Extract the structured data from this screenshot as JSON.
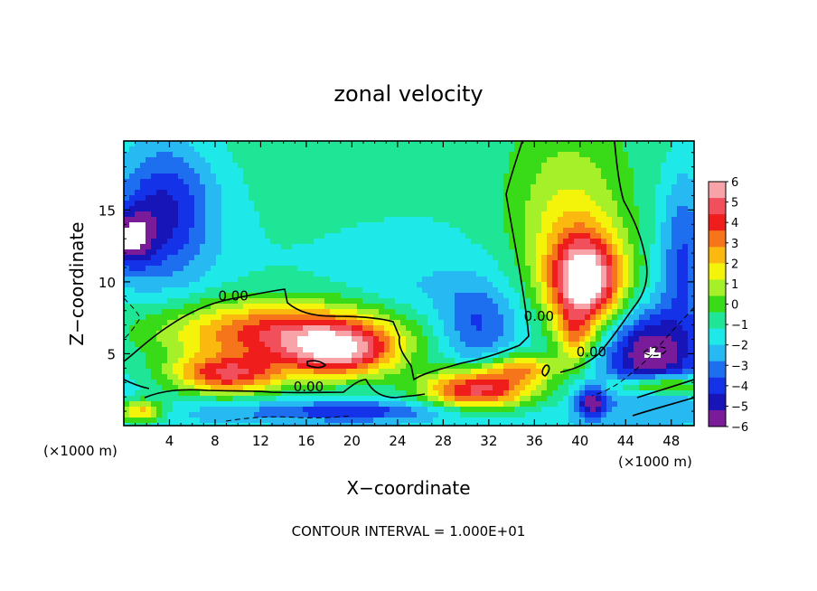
{
  "chart_data": {
    "type": "heatmap",
    "title": "zonal velocity",
    "xlabel": "X−coordinate",
    "ylabel": "Z−coordinate",
    "x_unit_note_left": "(×1000 m)",
    "x_unit_note_right": "(×1000 m)",
    "footer": "CONTOUR INTERVAL = 1.000E+01",
    "xlim": [
      0,
      50
    ],
    "ylim": [
      0,
      19.8
    ],
    "x_ticks": [
      4,
      8,
      12,
      16,
      20,
      24,
      28,
      32,
      36,
      40,
      44,
      48
    ],
    "y_ticks": [
      5,
      10,
      15
    ],
    "colorbar": {
      "range": [
        -6,
        6
      ],
      "ticks": [
        "6",
        "5",
        "4",
        "3",
        "2",
        "1",
        "0",
        "−1",
        "−2",
        "−3",
        "−4",
        "−5",
        "−6"
      ],
      "colors": [
        "#f7a3a8",
        "#f24f5c",
        "#f01d1d",
        "#f7751a",
        "#fbb80f",
        "#f4f40b",
        "#a6f02a",
        "#39da18",
        "#1fe696",
        "#1ee8e8",
        "#26b9f2",
        "#1e6ff0",
        "#1432e8",
        "#1714b8",
        "#7a1c9a"
      ]
    },
    "contour_labels": [
      {
        "text": "0.00",
        "x": 9.6,
        "z": 8.7
      },
      {
        "text": "0.00",
        "x": 16.2,
        "z": 2.4
      },
      {
        "text": "0.00",
        "x": 36.4,
        "z": 7.3
      },
      {
        "text": "0.00",
        "x": 41.0,
        "z": 4.8
      }
    ],
    "fields": [
      {
        "x": 14,
        "z": 6.5,
        "sx": 11,
        "sz": 2.2,
        "v": 5.6
      },
      {
        "x": 9,
        "z": 3.5,
        "sx": 5,
        "sz": 1.4,
        "v": 5.5
      },
      {
        "x": 19,
        "z": 5.0,
        "sx": 5,
        "sz": 1.8,
        "v": 5.5
      },
      {
        "x": 31,
        "z": 2.5,
        "sx": 5,
        "sz": 1.5,
        "v": 6.5
      },
      {
        "x": 35,
        "z": 4.0,
        "sx": 3,
        "sz": 1.0,
        "v": 3.5
      },
      {
        "x": 40.5,
        "z": 10.0,
        "sx": 3.2,
        "sz": 3.2,
        "v": 7.5
      },
      {
        "x": 39.5,
        "z": 6.0,
        "sx": 1.6,
        "sz": 2.0,
        "v": 3.0
      },
      {
        "x": 39,
        "z": 14,
        "sx": 5,
        "sz": 6,
        "v": 2.5
      },
      {
        "x": 1.5,
        "z": 1.0,
        "sx": 2,
        "sz": 0.8,
        "v": 4.0
      },
      {
        "x": 3.5,
        "z": 15,
        "sx": 4.5,
        "sz": 5,
        "v": -3.6
      },
      {
        "x": 0.5,
        "z": 13,
        "sx": 2,
        "sz": 2,
        "v": -3.5
      },
      {
        "x": 31,
        "z": 7,
        "sx": 3.5,
        "sz": 3,
        "v": -2.5
      },
      {
        "x": 25,
        "z": 9,
        "sx": 6,
        "sz": 4,
        "v": -0.8
      },
      {
        "x": 49,
        "z": 12,
        "sx": 2,
        "sz": 6,
        "v": -2.5
      },
      {
        "x": 20,
        "z": 1.0,
        "sx": 11,
        "sz": 0.7,
        "v": -2.4
      },
      {
        "x": 41,
        "z": 1.6,
        "sx": 1.4,
        "sz": 1.1,
        "v": -4.0
      },
      {
        "x": 46,
        "z": 5,
        "sx": 4,
        "sz": 3,
        "v": -4.5
      },
      {
        "x": 47,
        "z": 2.8,
        "sx": 4,
        "sz": 0.7,
        "v": 4.5
      }
    ]
  }
}
